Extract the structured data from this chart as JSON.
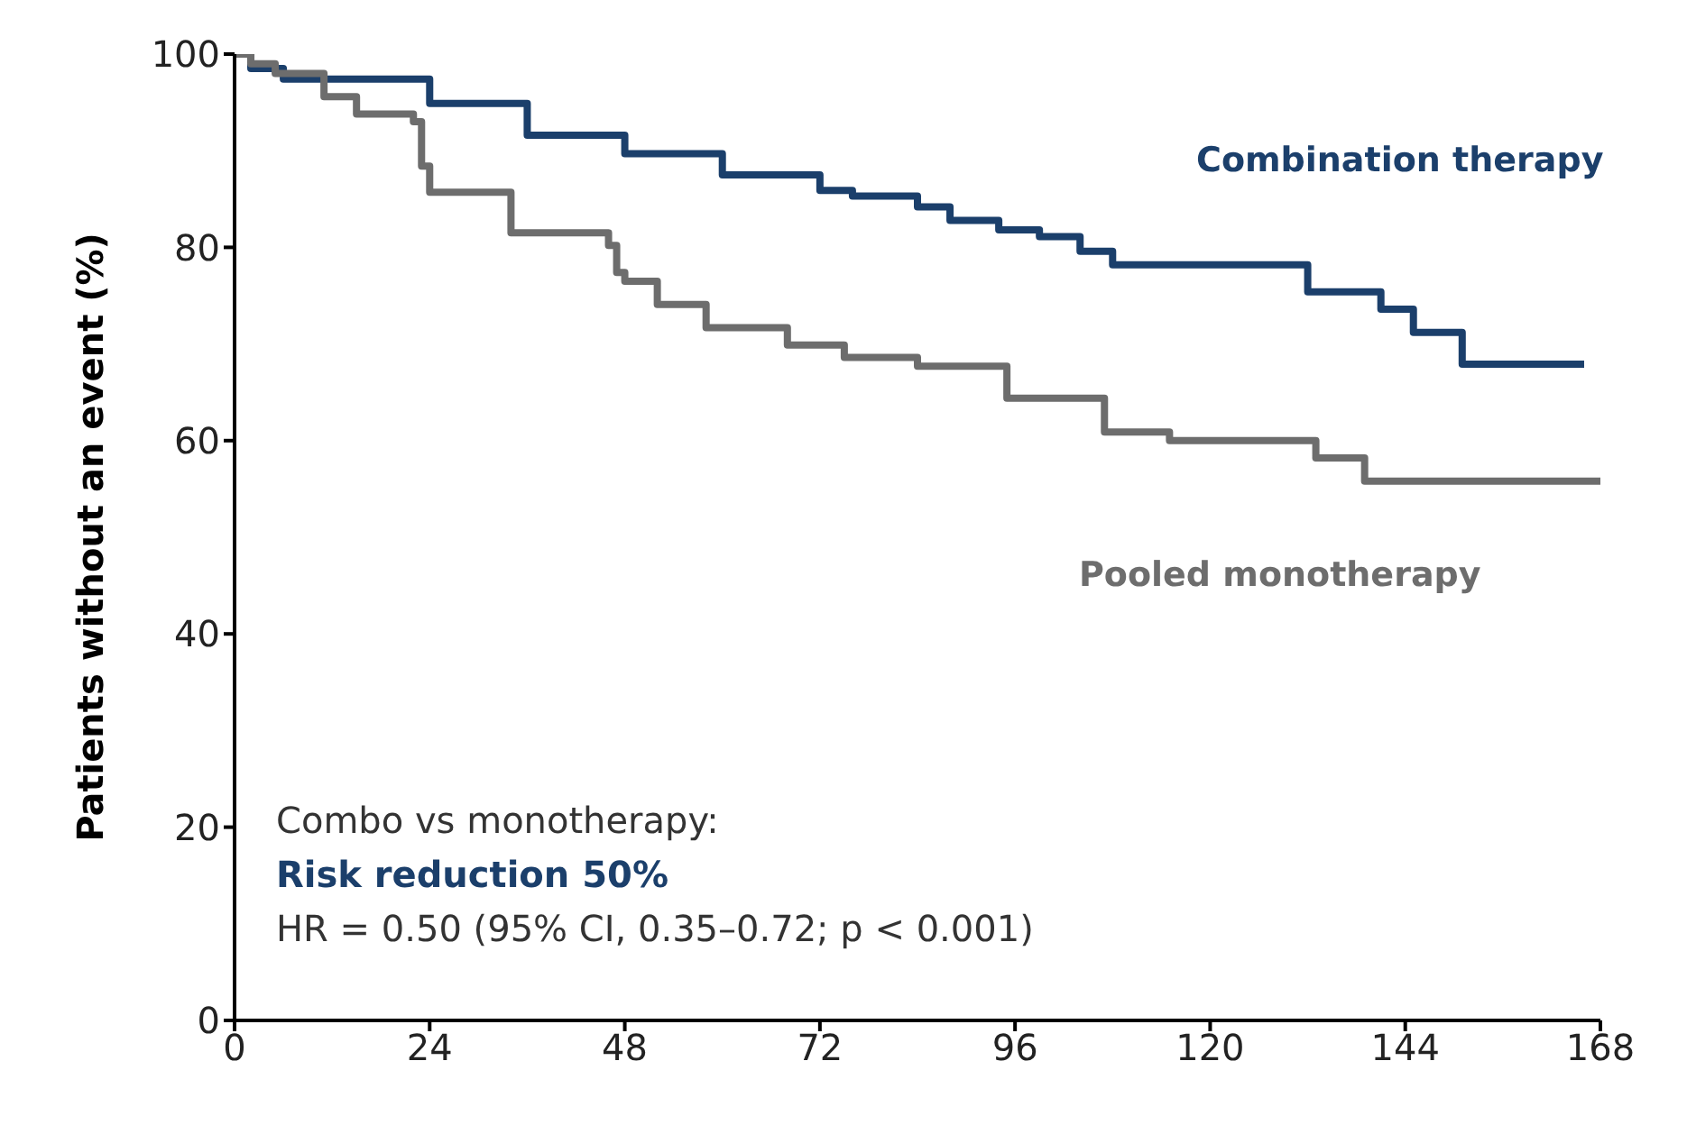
{
  "chart_data": {
    "type": "step",
    "ylabel": "Patients without an event (%)",
    "xlim": [
      0,
      168
    ],
    "xticks": [
      0,
      24,
      48,
      72,
      96,
      120,
      144,
      168
    ],
    "ylim": [
      0,
      100
    ],
    "yticks": [
      0,
      20,
      40,
      60,
      80,
      100
    ],
    "marker": "none",
    "line_style": "solid",
    "series": [
      {
        "name": "Combination therapy",
        "color": "#1b3f6b",
        "x": [
          0,
          2,
          6,
          24,
          36,
          48,
          60,
          72,
          76,
          84,
          88,
          94,
          99,
          104,
          108,
          132,
          141,
          145,
          151,
          166
        ],
        "values": [
          100,
          98.5,
          97.4,
          94.9,
          91.6,
          89.7,
          87.5,
          85.9,
          85.3,
          84.2,
          82.8,
          81.8,
          81.1,
          79.6,
          78.2,
          75.4,
          73.6,
          71.2,
          67.9,
          67.9
        ]
      },
      {
        "name": "Pooled monotherapy",
        "color": "#6d6d6d",
        "x": [
          0,
          2,
          5,
          11,
          15,
          22,
          23,
          24,
          34,
          46,
          47,
          48,
          52,
          58,
          68,
          75,
          84,
          95,
          107,
          115,
          133,
          139,
          168
        ],
        "values": [
          100,
          99,
          98,
          95.6,
          93.8,
          93,
          88.4,
          85.7,
          81.5,
          80.2,
          77.4,
          76.5,
          74.1,
          71.7,
          69.9,
          68.6,
          67.7,
          64.4,
          60.9,
          60,
          58.2,
          55.8,
          55.8
        ]
      }
    ],
    "annotations": [
      "Combo vs monotherapy:",
      "Risk reduction 50%",
      "HR = 0.50 (95% CI, 0.35–0.72; p < 0.001)"
    ]
  }
}
